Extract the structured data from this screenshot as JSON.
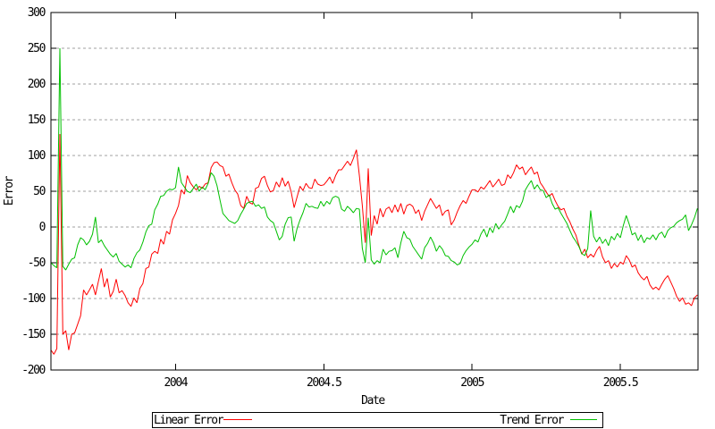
{
  "page": {
    "background": "#ffffff"
  },
  "axis_labels": {
    "x": "Date",
    "y": "Error"
  },
  "legend": {
    "linear_label": "Linear Error",
    "trend_label": "Trend Error"
  },
  "chart_data": {
    "type": "line",
    "title": "",
    "xlabel": "Date",
    "ylabel": "Error",
    "xlim": [
      2003.58,
      2005.762
    ],
    "ylim": [
      -200,
      300
    ],
    "xticks": [
      2004,
      2004.5,
      2005,
      2005.5
    ],
    "yticks": [
      300,
      250,
      200,
      150,
      100,
      50,
      0,
      -50,
      -100,
      -150,
      -200
    ],
    "grid": "horizontal-dashed",
    "legend_position": "below-box",
    "colors": {
      "linear": "#ff0000",
      "trend": "#00c000",
      "grid": "#a0a0a0",
      "axis": "#000000"
    },
    "series": [
      {
        "name": "Linear Error",
        "color_key": "linear",
        "t0": 2003.58,
        "dt": 0.01,
        "values": [
          -172,
          -178,
          -170,
          130,
          -150,
          -145,
          -172,
          -150,
          -148,
          -136,
          -124,
          -88,
          -95,
          -88,
          -80,
          -95,
          -76,
          -58,
          -84,
          -72,
          -98,
          -90,
          -73,
          -92,
          -89,
          -96,
          -106,
          -111,
          -99,
          -106,
          -86,
          -79,
          -58,
          -56,
          -38,
          -34,
          -37,
          -17,
          -24,
          -6,
          -10,
          10,
          19,
          30,
          52,
          46,
          72,
          62,
          56,
          52,
          57,
          54,
          60,
          62,
          83,
          90,
          91,
          86,
          84,
          71,
          74,
          62,
          52,
          46,
          30,
          26,
          43,
          34,
          32,
          54,
          56,
          68,
          71,
          58,
          49,
          51,
          63,
          56,
          69,
          57,
          64,
          49,
          27,
          42,
          57,
          51,
          61,
          55,
          54,
          67,
          60,
          58,
          59,
          64,
          70,
          61,
          72,
          80,
          80,
          86,
          92,
          86,
          96,
          108,
          72,
          30,
          -22,
          82,
          -12,
          16,
          4,
          26,
          14,
          25,
          28,
          20,
          31,
          21,
          33,
          18,
          30,
          32,
          29,
          19,
          24,
          9,
          22,
          31,
          40,
          33,
          26,
          31,
          16,
          22,
          24,
          3,
          10,
          21,
          30,
          37,
          33,
          43,
          52,
          52,
          49,
          56,
          53,
          59,
          65,
          56,
          61,
          67,
          58,
          60,
          73,
          68,
          76,
          87,
          81,
          84,
          73,
          79,
          84,
          74,
          77,
          62,
          56,
          49,
          43,
          47,
          37,
          29,
          24,
          26,
          15,
          7,
          -3,
          -11,
          -25,
          -38,
          -31,
          -43,
          -38,
          -42,
          -33,
          -27,
          -42,
          -50,
          -47,
          -58,
          -51,
          -56,
          -49,
          -52,
          -40,
          -46,
          -56,
          -53,
          -64,
          -70,
          -74,
          -69,
          -81,
          -87,
          -84,
          -88,
          -80,
          -73,
          -68,
          -77,
          -86,
          -97,
          -104,
          -99,
          -108,
          -106,
          -110,
          -99,
          -95
        ]
      },
      {
        "name": "Trend Error",
        "color_key": "trend",
        "t0": 2003.58,
        "dt": 0.01,
        "values": [
          -50,
          -54,
          -57,
          250,
          -55,
          -60,
          -52,
          -45,
          -43,
          -25,
          -15,
          -18,
          -25,
          -20,
          -10,
          14,
          -22,
          -18,
          -26,
          -32,
          -38,
          -42,
          -37,
          -48,
          -52,
          -56,
          -53,
          -57,
          -44,
          -36,
          -32,
          -21,
          -7,
          2,
          4,
          24,
          32,
          43,
          44,
          50,
          53,
          52,
          55,
          84,
          62,
          56,
          50,
          48,
          54,
          60,
          50,
          56,
          52,
          61,
          76,
          71,
          58,
          38,
          19,
          14,
          9,
          7,
          5,
          9,
          18,
          25,
          33,
          35,
          36,
          29,
          31,
          26,
          28,
          14,
          9,
          6,
          -6,
          -18,
          -13,
          4,
          13,
          14,
          -20,
          -2,
          10,
          20,
          33,
          28,
          29,
          27,
          26,
          36,
          29,
          36,
          32,
          41,
          43,
          41,
          25,
          22,
          29,
          25,
          20,
          26,
          25,
          -30,
          -50,
          13,
          -46,
          -52,
          -47,
          -50,
          -31,
          -39,
          -34,
          -33,
          -29,
          -43,
          -22,
          -6,
          -15,
          -17,
          -27,
          -33,
          -39,
          -45,
          -29,
          -23,
          -14,
          -22,
          -34,
          -26,
          -31,
          -40,
          -41,
          -47,
          -49,
          -53,
          -51,
          -40,
          -33,
          -28,
          -24,
          -18,
          -21,
          -10,
          -3,
          -14,
          -1,
          -8,
          5,
          -3,
          3,
          8,
          18,
          29,
          20,
          30,
          27,
          36,
          52,
          59,
          65,
          53,
          59,
          52,
          51,
          41,
          45,
          33,
          25,
          27,
          19,
          12,
          5,
          -5,
          -14,
          -20,
          -27,
          -37,
          -40,
          -30,
          23,
          -13,
          -21,
          -14,
          -23,
          -17,
          -26,
          -13,
          -18,
          -9,
          -15,
          2,
          16,
          4,
          -11,
          -8,
          -19,
          -11,
          -22,
          -15,
          -17,
          -11,
          -18,
          -10,
          -7,
          -15,
          -5,
          -1,
          1,
          6,
          9,
          11,
          17,
          -5,
          3,
          13,
          26
        ]
      }
    ]
  }
}
